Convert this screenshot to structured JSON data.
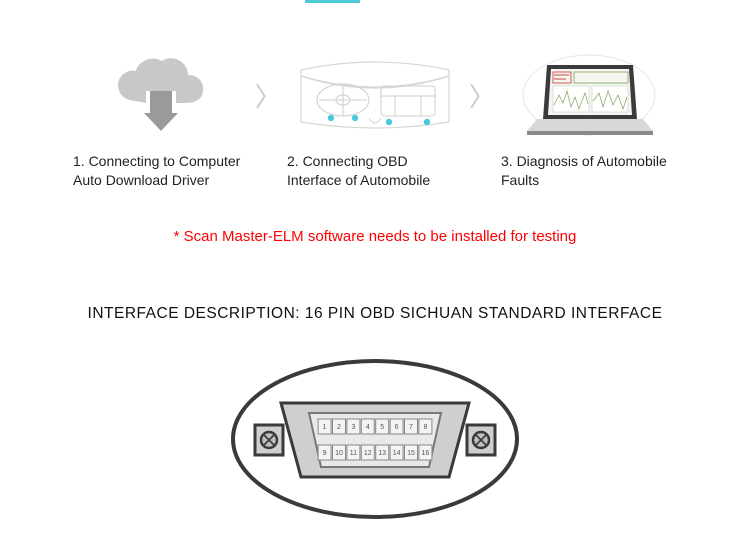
{
  "accent_color": "#4cc8d6",
  "steps": [
    {
      "caption": "1. Connecting to Computer Auto Download Driver",
      "icon": "cloud-download"
    },
    {
      "caption": "2. Connecting OBD Interface of Automobile",
      "icon": "car-dashboard"
    },
    {
      "caption": "3. Diagnosis of Automobile Faults",
      "icon": "laptop-diagnosis"
    }
  ],
  "chevron": "〉",
  "warning_text": "* Scan Master-ELM software needs to be installed for testing",
  "warning_color": "#ff0000",
  "section_title": "INTERFACE DESCRIPTION: 16 PIN OBD SICHUAN STANDARD INTERFACE",
  "connector": {
    "type": "obd2-16pin",
    "top_row_pins": [
      "1",
      "2",
      "3",
      "4",
      "5",
      "6",
      "7",
      "8"
    ],
    "bottom_row_pins": [
      "9",
      "10",
      "11",
      "12",
      "13",
      "14",
      "15",
      "16"
    ],
    "outline_color": "#3a3a3a",
    "shell_fill": "#cfcfcf",
    "pin_fill": "#f4f4f2",
    "pin_border": "#888888",
    "screw_fill": "#bfbfbf"
  },
  "colors": {
    "text": "#222222",
    "icon_gray": "#c8c8c8",
    "dashboard_line": "#d6d6d6",
    "dashboard_dot": "#4cc8d6",
    "laptop_body": "#3b3b3b",
    "laptop_screen_bg": "#f4f6ef"
  }
}
